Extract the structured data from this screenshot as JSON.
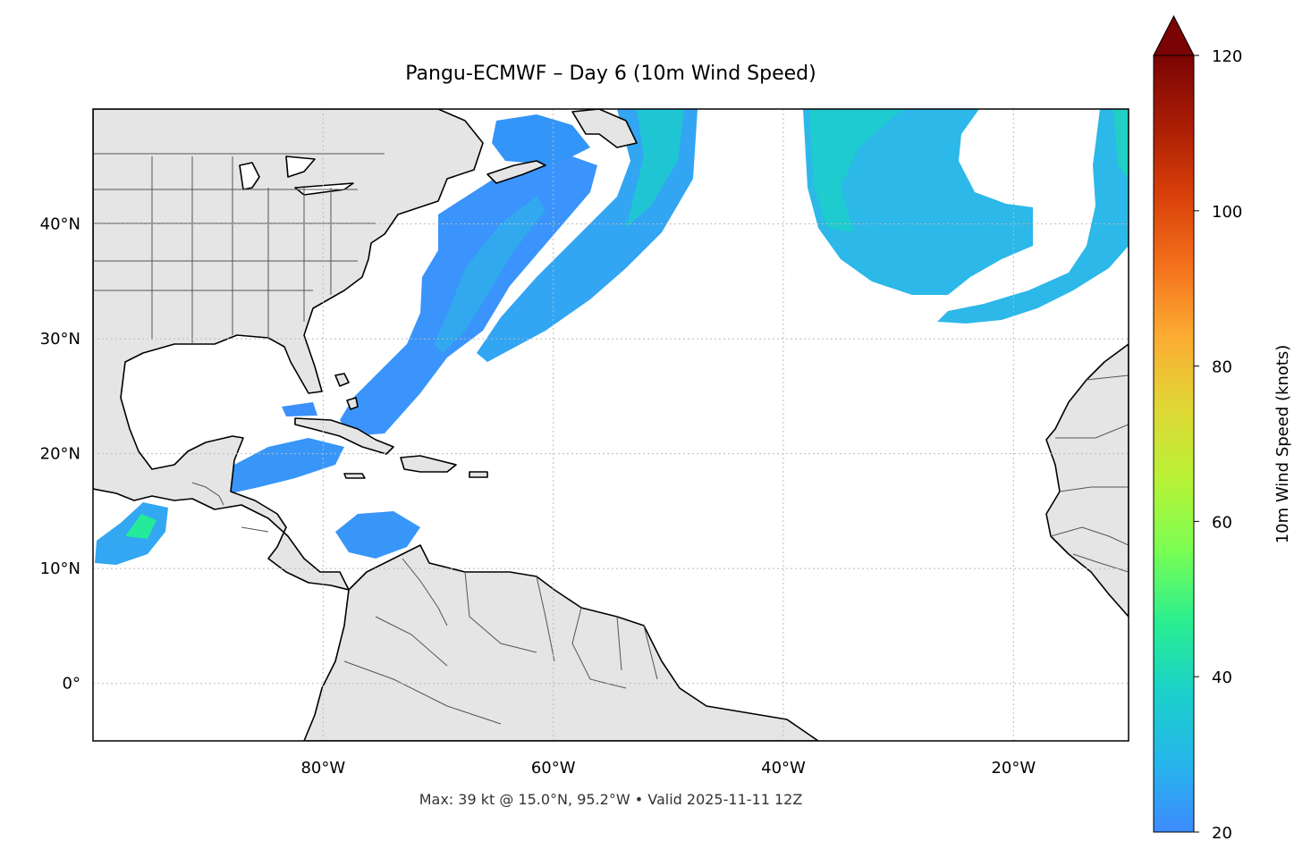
{
  "title": "Pangu-ECMWF – Day 6 (10m Wind Speed)",
  "footer": "Max: 39 kt @ 15.0°N, 95.2°W • Valid 2025-11-11 12Z",
  "map": {
    "extent": {
      "lon_min": -100,
      "lon_max": -10,
      "lat_min": -5,
      "lat_max": 50
    },
    "land_color": "#e5e5e5",
    "coast_color": "#000000",
    "border_color": "#555555",
    "grid_color": "#bbbbbb",
    "lon_ticks": [
      {
        "value": -80,
        "label": "80°W"
      },
      {
        "value": -60,
        "label": "60°W"
      },
      {
        "value": -40,
        "label": "40°W"
      },
      {
        "value": -20,
        "label": "20°W"
      }
    ],
    "lat_ticks": [
      {
        "value": 40,
        "label": "40°N"
      },
      {
        "value": 30,
        "label": "30°N"
      },
      {
        "value": 20,
        "label": "20°N"
      },
      {
        "value": 10,
        "label": "10°N"
      },
      {
        "value": 0,
        "label": "0°"
      }
    ]
  },
  "colorbar": {
    "label": "10m Wind Speed (knots)",
    "min": 20,
    "max": 120,
    "ticks": [
      20,
      40,
      60,
      80,
      100,
      120
    ],
    "extend": "max",
    "colors": [
      "#3e8bfe",
      "#25b6ea",
      "#1bd1c9",
      "#2bef8f",
      "#7bfe52",
      "#b8f236",
      "#e0d735",
      "#fcad33",
      "#f4721c",
      "#d9410a",
      "#aa1d04",
      "#7a0403"
    ]
  },
  "max_point": {
    "speed_kt": 39,
    "lat": 15.0,
    "lon": -95.2
  }
}
